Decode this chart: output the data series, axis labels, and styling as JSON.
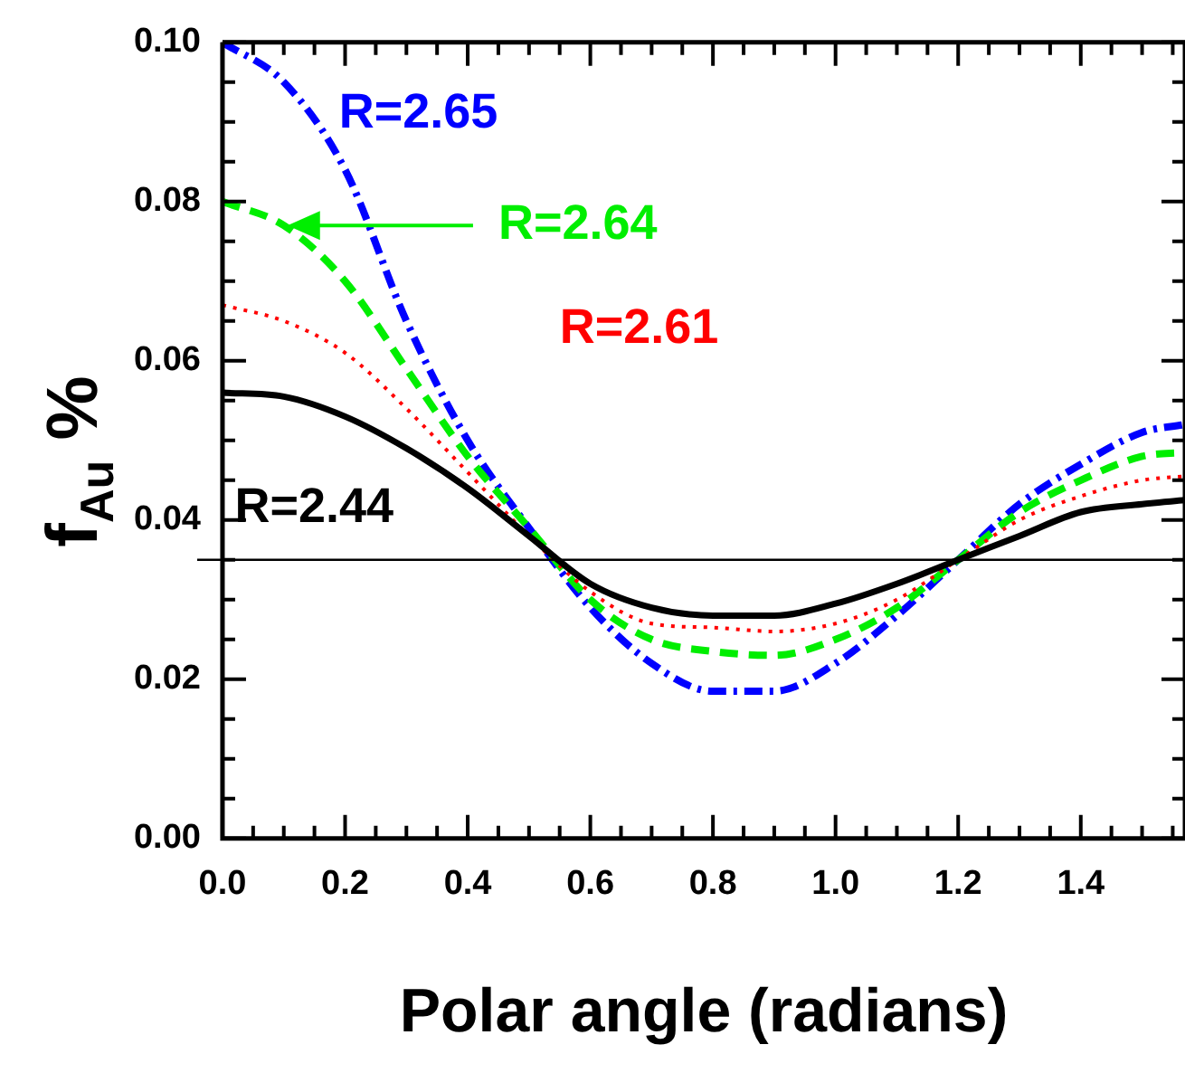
{
  "chart_data": {
    "type": "line",
    "xlabel": "Polar angle (radians)",
    "ylabel": "f$_{Au}$ %",
    "x": [
      0,
      0.1,
      0.2,
      0.3,
      0.4,
      0.5,
      0.6,
      0.7,
      0.8,
      0.9,
      1.0,
      1.1,
      1.2,
      1.3,
      1.4,
      1.5,
      1.57
    ],
    "series": [
      {
        "name": "R=2.44",
        "color": "#000000",
        "line_style": "solid",
        "values": [
          0.056,
          0.0555,
          0.053,
          0.049,
          0.044,
          0.038,
          0.032,
          0.029,
          0.028,
          0.028,
          0.0295,
          0.032,
          0.035,
          0.038,
          0.041,
          0.042,
          0.0425
        ]
      },
      {
        "name": "R=2.61",
        "color": "#ff0000",
        "line_style": "dotted",
        "values": [
          0.067,
          0.065,
          0.061,
          0.054,
          0.046,
          0.038,
          0.031,
          0.027,
          0.0265,
          0.026,
          0.027,
          0.03,
          0.035,
          0.04,
          0.043,
          0.045,
          0.0455
        ]
      },
      {
        "name": "R=2.64",
        "color": "#00ee00",
        "line_style": "dashed",
        "values": [
          0.08,
          0.077,
          0.07,
          0.059,
          0.048,
          0.039,
          0.03,
          0.025,
          0.0235,
          0.023,
          0.025,
          0.029,
          0.035,
          0.041,
          0.045,
          0.048,
          0.0485
        ]
      },
      {
        "name": "R=2.65",
        "color": "#0000ff",
        "line_style": "dashdot",
        "values": [
          0.1,
          0.095,
          0.084,
          0.065,
          0.05,
          0.039,
          0.029,
          0.022,
          0.0185,
          0.0185,
          0.022,
          0.028,
          0.035,
          0.042,
          0.047,
          0.051,
          0.052
        ]
      }
    ],
    "xlim": [
      0,
      1.57
    ],
    "xticks": [
      {
        "value": 0,
        "label": "0.0"
      },
      0.2,
      0.4,
      0.6,
      0.8,
      {
        "value": 1,
        "label": "1.0"
      },
      {
        "value": 1.2,
        "label": "1.2"
      },
      {
        "value": 1.4,
        "label": "1.4"
      }
    ],
    "ylim": [
      0,
      0.1
    ],
    "yticks": [
      {
        "value": 0,
        "label": "0.00"
      },
      {
        "value": 0.02,
        "label": "0.02"
      },
      {
        "value": 0.04,
        "label": "0.04"
      },
      {
        "value": 0.06,
        "label": "0.06"
      },
      {
        "value": 0.08,
        "label": "0.08"
      },
      {
        "value": 0.1,
        "label": "0.10"
      }
    ],
    "ref_lines": [
      {
        "axis": "y",
        "value": 0.035,
        "color": "#000000"
      }
    ]
  }
}
